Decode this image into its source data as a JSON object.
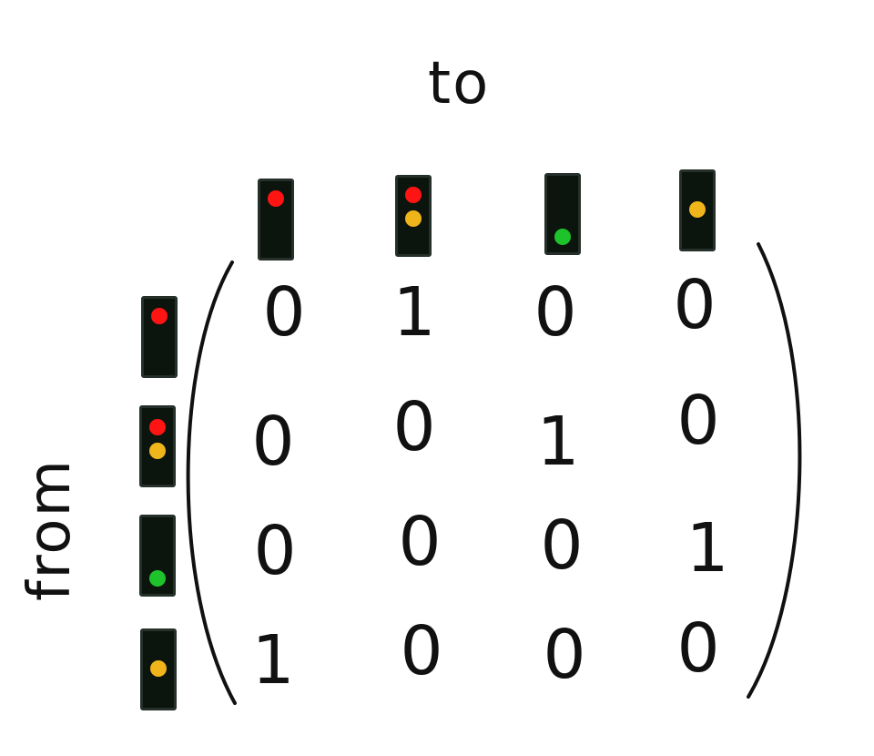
{
  "labels": {
    "to": "to",
    "from": "from"
  },
  "colors": {
    "red": "#ff1414",
    "amber": "#f0b51b",
    "green": "#1ec22a",
    "housing": "#0b150d"
  },
  "states": [
    {
      "id": "red",
      "lamps": [
        "red"
      ]
    },
    {
      "id": "red-amber",
      "lamps": [
        "red",
        "amber"
      ]
    },
    {
      "id": "green",
      "lamps": [
        "green"
      ]
    },
    {
      "id": "amber",
      "lamps": [
        "amber"
      ]
    }
  ],
  "matrix": {
    "row0": {
      "c0": "0",
      "c1": "1",
      "c2": "0",
      "c3": "0"
    },
    "row1": {
      "c0": "0",
      "c1": "0",
      "c2": "1",
      "c3": "0"
    },
    "row2": {
      "c0": "0",
      "c1": "0",
      "c2": "0",
      "c3": "1"
    },
    "row3": {
      "c0": "1",
      "c1": "0",
      "c2": "0",
      "c3": "0"
    }
  }
}
